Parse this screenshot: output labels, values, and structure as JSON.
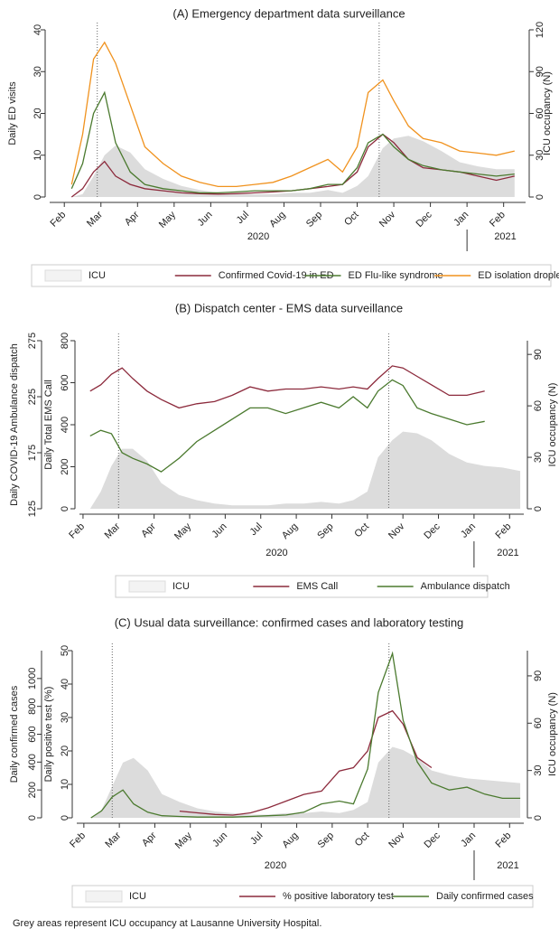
{
  "chart_data": [
    {
      "type": "line",
      "title": "(A) Emergency department data surveillance",
      "ylabel": "Daily ED visits",
      "y2label": "ICU occupancy (N)",
      "xlim": [
        -0.4,
        12.6
      ],
      "xticks": [
        {
          "value": 0,
          "label": "Feb"
        },
        {
          "value": 1,
          "label": "Mar"
        },
        {
          "value": 2,
          "label": "Apr"
        },
        {
          "value": 3,
          "label": "May"
        },
        {
          "value": 4,
          "label": "Jun"
        },
        {
          "value": 5,
          "label": "Jul"
        },
        {
          "value": 6,
          "label": "Aug"
        },
        {
          "value": 7,
          "label": "Sep"
        },
        {
          "value": 8,
          "label": "Oct"
        },
        {
          "value": 9,
          "label": "Nov"
        },
        {
          "value": 10,
          "label": "Dec"
        },
        {
          "value": 11,
          "label": "Jan"
        },
        {
          "value": 12,
          "label": "Feb"
        }
      ],
      "year_labels": [
        "2020",
        "2021"
      ],
      "ylim": [
        0,
        40
      ],
      "yticks": [
        0,
        10,
        20,
        30,
        40
      ],
      "y2lim": [
        0,
        120
      ],
      "y2ticks": [
        0,
        30,
        60,
        90,
        120
      ],
      "vlines": [
        0.9,
        8.6
      ],
      "x": [
        0.2,
        0.5,
        0.8,
        1.1,
        1.4,
        1.8,
        2.2,
        2.7,
        3.2,
        3.7,
        4.2,
        4.7,
        5.2,
        5.7,
        6.2,
        6.7,
        7.2,
        7.6,
        8.0,
        8.3,
        8.7,
        9.0,
        9.4,
        9.8,
        10.3,
        10.8,
        11.3,
        11.8,
        12.3
      ],
      "series": [
        {
          "name": "ICU",
          "style": "area",
          "axis": "y2",
          "color": "#dcdcdc",
          "values": [
            0,
            2,
            15,
            30,
            37,
            32,
            20,
            13,
            8,
            5,
            3,
            2,
            2,
            2,
            3,
            3,
            5,
            3,
            8,
            15,
            35,
            42,
            44,
            40,
            33,
            25,
            22,
            20,
            20
          ]
        },
        {
          "name": "Confirmed Covid-19 in ED",
          "color": "#8c2a3c",
          "values": [
            0,
            2,
            6,
            8.5,
            5,
            3,
            2,
            1.5,
            1,
            0.8,
            0.7,
            0.8,
            1,
            1.2,
            1.5,
            2,
            2.5,
            3,
            6,
            12,
            15,
            13,
            9,
            7,
            6.5,
            6,
            5,
            4,
            5
          ]
        },
        {
          "name": "ED Flu-like syndrome",
          "color": "#4b7a2f",
          "values": [
            2,
            8,
            20,
            25,
            13,
            6,
            3,
            2,
            1.5,
            1,
            1,
            1.2,
            1.5,
            1.5,
            1.5,
            2,
            3,
            3,
            7,
            13,
            15,
            12,
            9,
            7.5,
            6.5,
            6,
            5.5,
            5,
            5.5
          ]
        },
        {
          "name": "ED isolation droplet",
          "color": "#f0921e",
          "values": [
            3,
            15,
            33,
            37,
            32,
            22,
            12,
            8,
            5,
            3.5,
            2.5,
            2.5,
            3,
            3.5,
            5,
            7,
            9,
            6,
            12,
            25,
            28,
            23,
            17,
            14,
            13,
            11,
            10.5,
            10,
            11
          ]
        }
      ]
    },
    {
      "type": "line",
      "title": "(B) Dispatch center - EMS data surveillance",
      "ylabel": "Daily Total EMS Call",
      "y2label": "ICU occupancy (N)",
      "y3label": "Daily COVID-19 Ambulance dispatch",
      "xlim": [
        -0.1,
        12.4
      ],
      "xticks": [
        {
          "value": 0,
          "label": "Feb"
        },
        {
          "value": 1,
          "label": "Mar"
        },
        {
          "value": 2,
          "label": "Apr"
        },
        {
          "value": 3,
          "label": "May"
        },
        {
          "value": 4,
          "label": "Jun"
        },
        {
          "value": 5,
          "label": "Jul"
        },
        {
          "value": 6,
          "label": "Aug"
        },
        {
          "value": 7,
          "label": "Sep"
        },
        {
          "value": 8,
          "label": "Oct"
        },
        {
          "value": 9,
          "label": "Nov"
        },
        {
          "value": 10,
          "label": "Dec"
        },
        {
          "value": 11,
          "label": "Jan"
        },
        {
          "value": 12,
          "label": "Feb"
        }
      ],
      "year_labels": [
        "2020",
        "2021"
      ],
      "ylim": [
        0,
        800
      ],
      "yticks": [
        0,
        200,
        400,
        600,
        800
      ],
      "y2lim": [
        0,
        98
      ],
      "y2ticks": [
        0,
        30,
        60,
        90
      ],
      "y3lim": [
        125,
        275
      ],
      "y3ticks": [
        125,
        175,
        225,
        275
      ],
      "vlines": [
        1.0,
        8.6
      ],
      "x": [
        0.2,
        0.5,
        0.8,
        1.1,
        1.4,
        1.8,
        2.2,
        2.7,
        3.2,
        3.7,
        4.2,
        4.7,
        5.2,
        5.7,
        6.2,
        6.7,
        7.2,
        7.6,
        8.0,
        8.3,
        8.7,
        9.0,
        9.4,
        9.8,
        10.3,
        10.8,
        11.3,
        11.8,
        12.3
      ],
      "series": [
        {
          "name": "ICU",
          "style": "area",
          "axis": "y2",
          "color": "#dcdcdc",
          "values": [
            0,
            10,
            25,
            35,
            35,
            28,
            15,
            8,
            5,
            3,
            2,
            2,
            2,
            3,
            3,
            4,
            3,
            5,
            10,
            30,
            40,
            45,
            44,
            40,
            32,
            27,
            25,
            24,
            22
          ]
        },
        {
          "name": "EMS Call",
          "color": "#8c2a3c",
          "values": [
            560,
            590,
            640,
            670,
            620,
            560,
            520,
            480,
            500,
            510,
            540,
            580,
            560,
            570,
            570,
            580,
            570,
            580,
            570,
            620,
            680,
            670,
            630,
            590,
            540,
            540,
            560,
            null,
            null
          ]
        },
        {
          "name": "Ambulance dispatch",
          "axis": "y3",
          "color": "#4b7a2f",
          "values": [
            190,
            195,
            192,
            175,
            170,
            165,
            158,
            170,
            185,
            195,
            205,
            215,
            215,
            210,
            215,
            220,
            215,
            225,
            215,
            230,
            240,
            235,
            215,
            210,
            205,
            200,
            203,
            null,
            null
          ]
        }
      ]
    },
    {
      "type": "line",
      "title": "(C) Usual data surveillance: confirmed cases and laboratory testing",
      "ylabel": "Daily positive test (%)",
      "y2label": "ICU occupancy (N)",
      "y3label": "Daily confirmed cases",
      "xlim": [
        -0.2,
        12.4
      ],
      "xticks": [
        {
          "value": 0,
          "label": "Feb"
        },
        {
          "value": 1,
          "label": "Mar"
        },
        {
          "value": 2,
          "label": "Apr"
        },
        {
          "value": 3,
          "label": "May"
        },
        {
          "value": 4,
          "label": "Jun"
        },
        {
          "value": 5,
          "label": "Jul"
        },
        {
          "value": 6,
          "label": "Aug"
        },
        {
          "value": 7,
          "label": "Sep"
        },
        {
          "value": 8,
          "label": "Oct"
        },
        {
          "value": 9,
          "label": "Nov"
        },
        {
          "value": 10,
          "label": "Dec"
        },
        {
          "value": 11,
          "label": "Jan"
        },
        {
          "value": 12,
          "label": "Feb"
        }
      ],
      "year_labels": [
        "2020",
        "2021"
      ],
      "ylim": [
        0,
        50
      ],
      "yticks": [
        0,
        10,
        20,
        30,
        40,
        50
      ],
      "y2lim": [
        0,
        106
      ],
      "y2ticks": [
        0,
        30,
        60,
        90
      ],
      "y3lim": [
        0,
        1200
      ],
      "y3ticks": [
        0,
        200,
        400,
        600,
        800,
        1000
      ],
      "vlines": [
        0.8,
        8.6
      ],
      "x": [
        0.2,
        0.5,
        0.8,
        1.1,
        1.4,
        1.8,
        2.2,
        2.7,
        3.2,
        3.7,
        4.2,
        4.7,
        5.2,
        5.7,
        6.2,
        6.7,
        7.2,
        7.6,
        8.0,
        8.3,
        8.7,
        9.0,
        9.4,
        9.8,
        10.3,
        10.8,
        11.3,
        11.8,
        12.3
      ],
      "series": [
        {
          "name": "ICU",
          "style": "area",
          "axis": "y2",
          "color": "#dcdcdc",
          "values": [
            0,
            5,
            20,
            35,
            38,
            30,
            15,
            10,
            6,
            4,
            3,
            2,
            2,
            3,
            3,
            4,
            3,
            5,
            10,
            35,
            45,
            43,
            38,
            30,
            27,
            25,
            24,
            23,
            22
          ]
        },
        {
          "name": "% positive laboratory test",
          "color": "#8c2a3c",
          "values": [
            null,
            null,
            null,
            null,
            null,
            null,
            null,
            2,
            1.5,
            1,
            0.8,
            1.5,
            3,
            5,
            7,
            8,
            14,
            15,
            20,
            30,
            32,
            28,
            18,
            15,
            null,
            null,
            null,
            null,
            null
          ]
        },
        {
          "name": "Daily confirmed cases",
          "axis": "y3",
          "color": "#4b7a2f",
          "values": [
            0,
            50,
            150,
            200,
            100,
            40,
            15,
            10,
            5,
            5,
            5,
            10,
            15,
            20,
            40,
            100,
            120,
            100,
            350,
            900,
            1180,
            700,
            400,
            250,
            200,
            220,
            170,
            140,
            140
          ]
        }
      ]
    }
  ],
  "note": "Grey areas represent ICU occupancy at Lausanne University Hospital."
}
